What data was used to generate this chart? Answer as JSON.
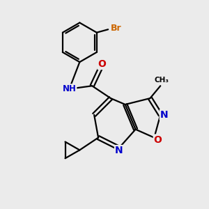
{
  "bg_color": "#ebebeb",
  "atom_colors": {
    "C": "#000000",
    "N": "#0000cc",
    "O": "#cc0000",
    "Br": "#cc6600",
    "H": "#888888"
  },
  "bond_color": "#000000",
  "figsize": [
    3.0,
    3.0
  ],
  "dpi": 100
}
